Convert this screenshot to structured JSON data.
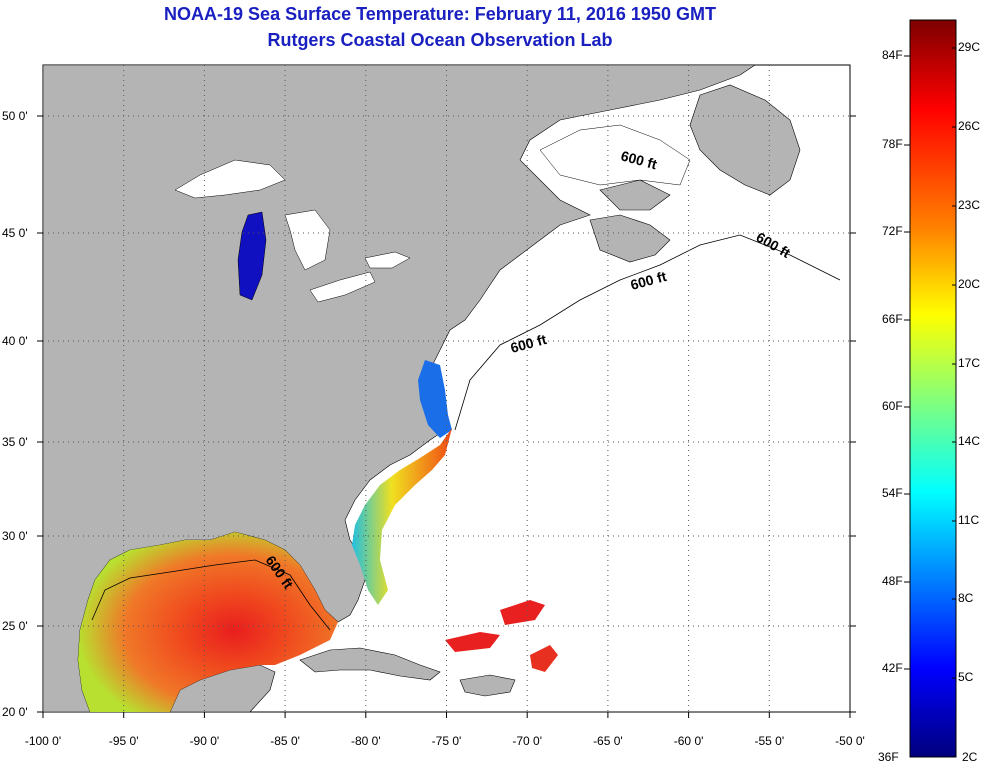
{
  "title": "NOAA-19 Sea Surface Temperature:  February 11, 2016 1950 GMT",
  "subtitle": "Rutgers Coastal Ocean Observation Lab",
  "map": {
    "lon_ticks": [
      "-100 0'",
      "-95 0'",
      "-90 0'",
      "-85 0'",
      "-80 0'",
      "-75 0'",
      "-70 0'",
      "-65 0'",
      "-60 0'",
      "-55 0'",
      "-50 0'"
    ],
    "lat_ticks": [
      "50 0'",
      "45 0'",
      "40 0'",
      "35 0'",
      "30 0'",
      "25 0'",
      "20 0'"
    ],
    "lon_values": [
      -100,
      -95,
      -90,
      -85,
      -80,
      -75,
      -70,
      -65,
      -60,
      -55,
      -50
    ],
    "lat_values": [
      50,
      45,
      40,
      35,
      30,
      25,
      20
    ],
    "contour_labels": [
      "600 ft",
      "600 ft",
      "600 ft",
      "600 ft",
      "600 ft"
    ],
    "land_color": "#b4b4b4",
    "no_data_color": "#ffffff",
    "gridlines": "dotted"
  },
  "colorbar": {
    "fahrenheit": [
      "84F",
      "78F",
      "72F",
      "66F",
      "60F",
      "54F",
      "48F",
      "42F",
      "36F"
    ],
    "celsius": [
      "29C",
      "26C",
      "23C",
      "20C",
      "17C",
      "14C",
      "11C",
      "8C",
      "5C",
      "2C"
    ],
    "colors": [
      "#7d0000",
      "#ff0000",
      "#ff7f00",
      "#ffff00",
      "#7fff7f",
      "#00ffff",
      "#007fff",
      "#0000ff",
      "#00007d"
    ]
  }
}
